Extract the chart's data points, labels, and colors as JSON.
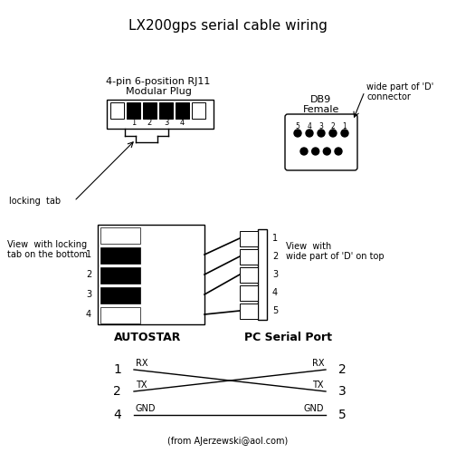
{
  "title": "LX200gps serial cable wiring",
  "bg_color": "#ffffff",
  "fg_color": "#000000",
  "footer": "(from AJerzewski@aol.com)",
  "rj11_label1": "4-pin 6-position RJ11",
  "rj11_label2": "Modular Plug",
  "db9_label1": "DB9",
  "db9_label2": "Female",
  "wide_d_label1": "wide part of 'D'",
  "wide_d_label2": "connector",
  "locking_tab_label": "locking  tab",
  "view_left1": "View  with locking",
  "view_left2": "tab on the bottom",
  "view_right1": "View  with",
  "view_right2": "wide part of 'D' on top",
  "autostar_label": "AUTOSTAR",
  "pc_label": "PC Serial Port"
}
